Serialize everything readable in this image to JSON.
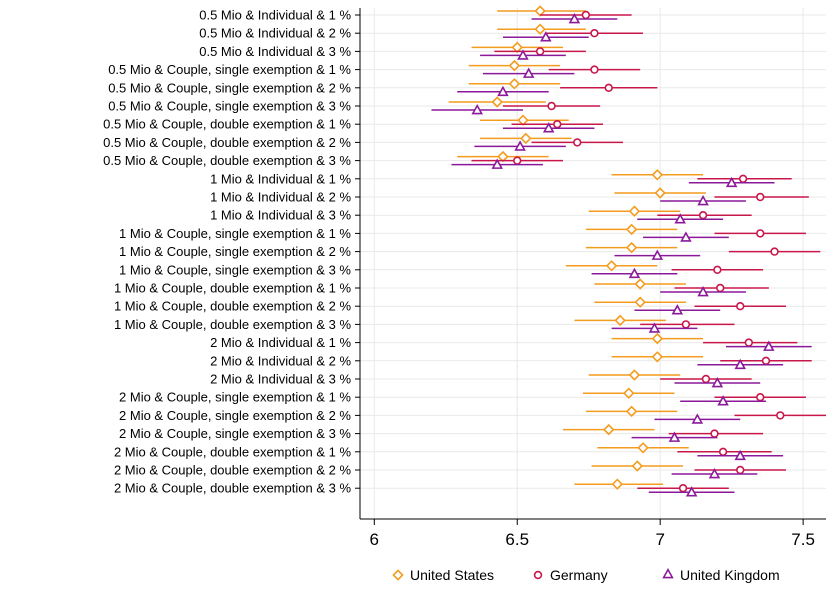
{
  "chart_data": {
    "type": "scatter",
    "orientation": "horizontal",
    "categories": [
      "0.5 Mio & Individual & 1 %",
      "0.5 Mio & Individual & 2 %",
      "0.5 Mio & Individual & 3 %",
      "0.5 Mio & Couple, single exemption & 1 %",
      "0.5 Mio & Couple, single exemption & 2 %",
      "0.5 Mio & Couple, single exemption & 3 %",
      "0.5 Mio & Couple, double exemption & 1 %",
      "0.5 Mio & Couple, double exemption & 2 %",
      "0.5 Mio & Couple, double exemption & 3 %",
      "1 Mio & Individual & 1 %",
      "1 Mio & Individual & 2 %",
      "1 Mio & Individual & 3 %",
      "1 Mio & Couple, single exemption & 1 %",
      "1 Mio & Couple, single exemption & 2 %",
      "1 Mio & Couple, single exemption & 3 %",
      "1 Mio & Couple, double exemption & 1 %",
      "1 Mio & Couple, double exemption & 2 %",
      "1 Mio & Couple, double exemption & 3 %",
      "2 Mio & Individual & 1 %",
      "2 Mio & Individual & 2 %",
      "2 Mio & Individual & 3 %",
      "2 Mio & Couple, single exemption & 1 %",
      "2 Mio & Couple, single exemption & 2 %",
      "2 Mio & Couple, single exemption & 3 %",
      "2 Mio & Couple, double exemption & 1 %",
      "2 Mio & Couple, double exemption & 2 %",
      "2 Mio & Couple, double exemption & 3 %"
    ],
    "xlim": [
      5.95,
      7.58
    ],
    "xticks": [
      6,
      6.5,
      7,
      7.5
    ],
    "xtick_labels": [
      "6",
      "6.5",
      "7",
      "7.5"
    ],
    "grid": true,
    "legend_position": "bottom",
    "series": [
      {
        "name": "United States",
        "color": "#f39c1f",
        "marker": "diamond",
        "estimates": [
          6.58,
          6.58,
          6.5,
          6.49,
          6.49,
          6.43,
          6.52,
          6.53,
          6.45,
          6.99,
          7.0,
          6.91,
          6.9,
          6.9,
          6.83,
          6.93,
          6.93,
          6.86,
          6.99,
          6.99,
          6.91,
          6.89,
          6.9,
          6.82,
          6.94,
          6.92,
          6.85
        ],
        "ci_low": [
          6.43,
          6.43,
          6.34,
          6.33,
          6.33,
          6.26,
          6.37,
          6.37,
          6.29,
          6.83,
          6.84,
          6.75,
          6.74,
          6.74,
          6.67,
          6.77,
          6.77,
          6.7,
          6.83,
          6.83,
          6.75,
          6.73,
          6.74,
          6.66,
          6.78,
          6.76,
          6.7
        ],
        "ci_high": [
          6.74,
          6.74,
          6.66,
          6.65,
          6.65,
          6.6,
          6.68,
          6.69,
          6.61,
          7.15,
          7.16,
          7.07,
          7.06,
          7.06,
          6.99,
          7.09,
          7.09,
          7.02,
          7.15,
          7.15,
          7.07,
          7.05,
          7.06,
          6.98,
          7.1,
          7.08,
          7.01
        ]
      },
      {
        "name": "Germany",
        "color": "#c8174a",
        "marker": "circle",
        "estimates": [
          6.74,
          6.77,
          6.58,
          6.77,
          6.82,
          6.62,
          6.64,
          6.71,
          6.5,
          7.29,
          7.35,
          7.15,
          7.35,
          7.4,
          7.2,
          7.21,
          7.28,
          7.09,
          7.31,
          7.37,
          7.16,
          7.35,
          7.42,
          7.19,
          7.22,
          7.28,
          7.08
        ],
        "ci_low": [
          6.58,
          6.6,
          6.42,
          6.61,
          6.65,
          6.45,
          6.48,
          6.55,
          6.34,
          7.13,
          7.19,
          6.99,
          7.19,
          7.24,
          7.04,
          7.05,
          7.12,
          6.93,
          7.15,
          7.21,
          7.0,
          7.19,
          7.26,
          7.03,
          7.06,
          7.12,
          6.92
        ],
        "ci_high": [
          6.9,
          6.94,
          6.74,
          6.93,
          6.99,
          6.79,
          6.8,
          6.87,
          6.66,
          7.46,
          7.52,
          7.32,
          7.51,
          7.56,
          7.36,
          7.38,
          7.44,
          7.26,
          7.48,
          7.53,
          7.32,
          7.51,
          7.58,
          7.36,
          7.39,
          7.44,
          7.24
        ]
      },
      {
        "name": "United Kingdom",
        "color": "#8b1a9a",
        "marker": "triangle",
        "estimates": [
          6.7,
          6.6,
          6.52,
          6.54,
          6.45,
          6.36,
          6.61,
          6.51,
          6.43,
          7.25,
          7.15,
          7.07,
          7.09,
          6.99,
          6.91,
          7.15,
          7.06,
          6.98,
          7.38,
          7.28,
          7.2,
          7.22,
          7.13,
          7.05,
          7.28,
          7.19,
          7.11
        ],
        "ci_low": [
          6.55,
          6.45,
          6.37,
          6.38,
          6.29,
          6.2,
          6.45,
          6.35,
          6.27,
          7.1,
          7.0,
          6.92,
          6.94,
          6.84,
          6.76,
          7.0,
          6.91,
          6.83,
          7.23,
          7.13,
          7.05,
          7.07,
          6.98,
          6.9,
          7.13,
          7.04,
          6.96
        ],
        "ci_high": [
          6.85,
          6.75,
          6.67,
          6.7,
          6.61,
          6.52,
          6.77,
          6.67,
          6.59,
          7.4,
          7.3,
          7.22,
          7.24,
          7.14,
          7.06,
          7.3,
          7.21,
          7.13,
          7.53,
          7.43,
          7.35,
          7.37,
          7.28,
          7.2,
          7.43,
          7.34,
          7.26
        ]
      }
    ]
  }
}
